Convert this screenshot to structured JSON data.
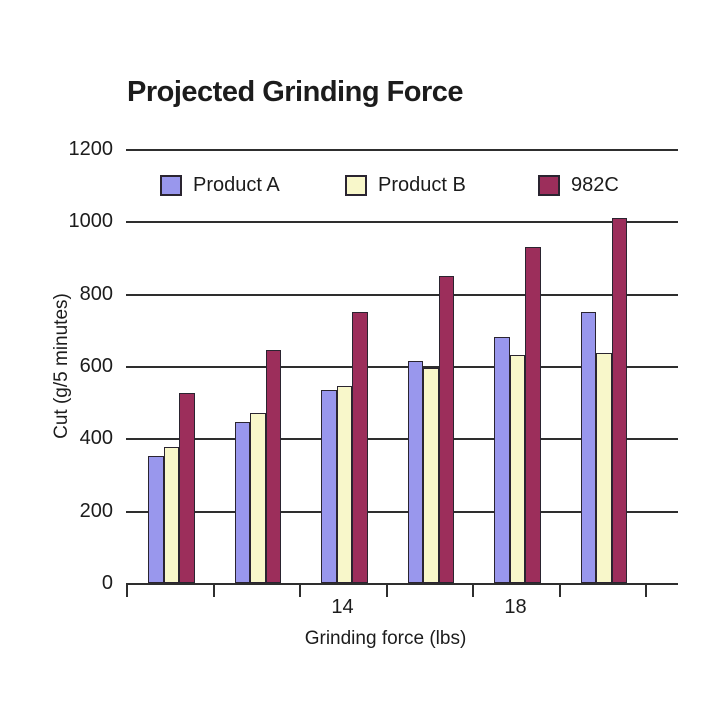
{
  "title": "Projected Grinding Force",
  "chart_data": {
    "type": "bar",
    "title": "Projected Grinding Force",
    "xlabel": "Grinding force (lbs)",
    "ylabel": "Cut (g/5 minutes)",
    "ylim": [
      0,
      1200
    ],
    "yticks": [
      0,
      200,
      400,
      600,
      800,
      1000,
      1200
    ],
    "grid": true,
    "legend_position": "top",
    "group_count": 6,
    "visible_x_labels": [
      {
        "group_index": 2,
        "label": "14"
      },
      {
        "group_index": 4,
        "label": "18"
      }
    ],
    "series": [
      {
        "name": "Product A",
        "color": "#9997ed",
        "values": [
          350,
          445,
          535,
          615,
          680,
          750
        ]
      },
      {
        "name": "Product B",
        "color": "#f8f7ca",
        "values": [
          375,
          470,
          545,
          595,
          630,
          635
        ]
      },
      {
        "name": "982C",
        "color": "#9c2e5b",
        "values": [
          525,
          645,
          750,
          850,
          930,
          1010
        ]
      }
    ]
  },
  "colors": {
    "axis_line": "#2e2e2e",
    "text": "#1c1c1c",
    "background": "#ffffff"
  }
}
